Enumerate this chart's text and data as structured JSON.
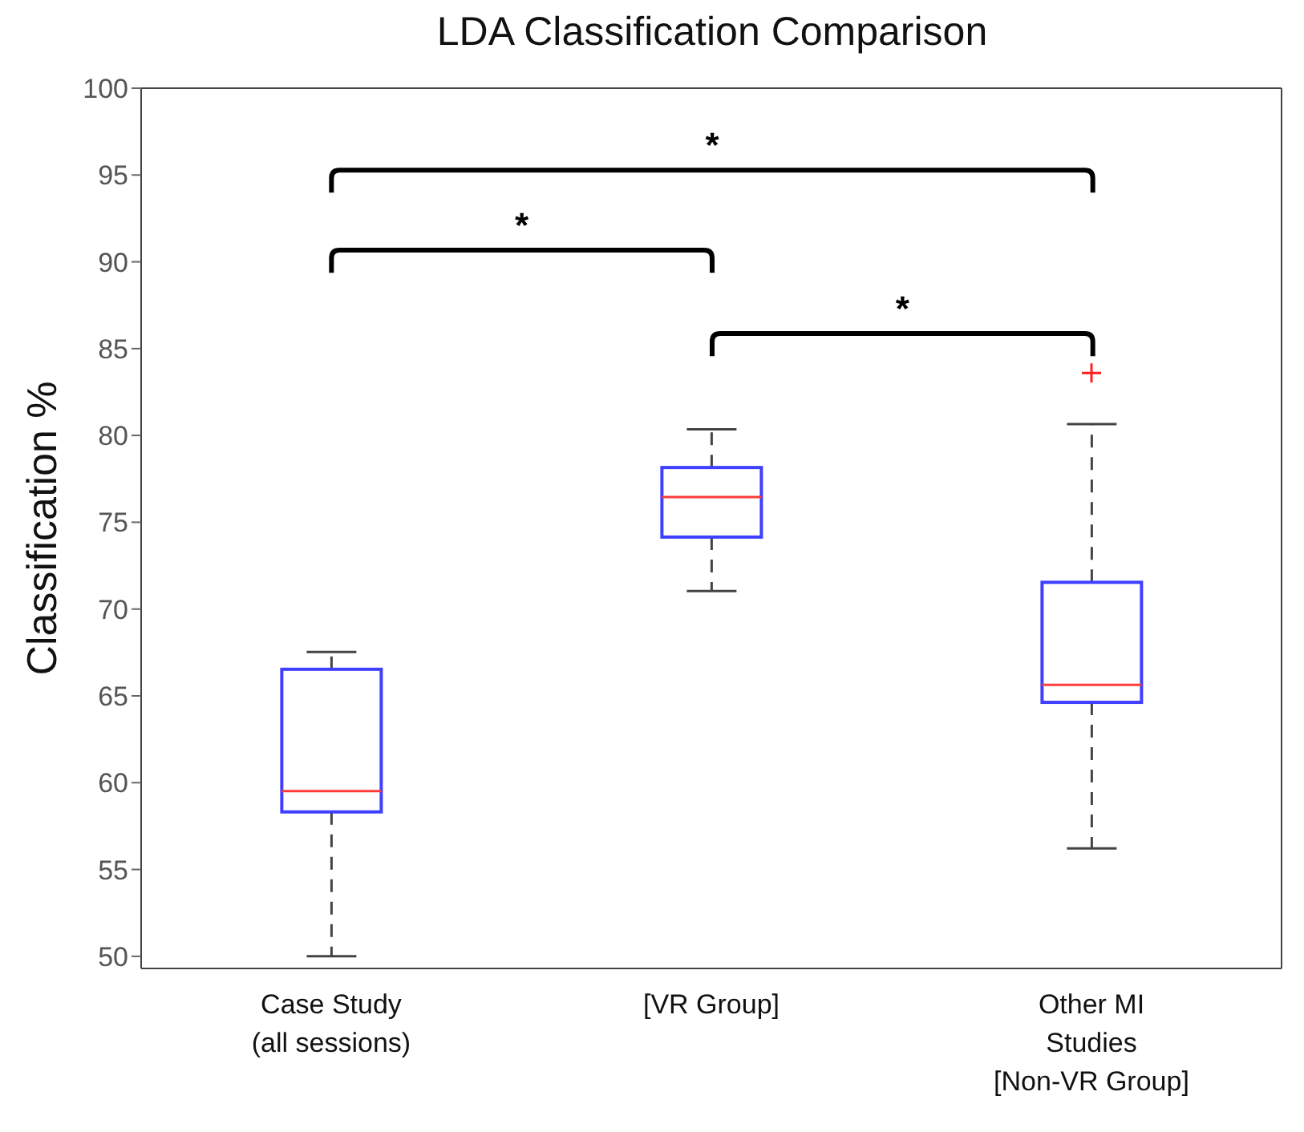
{
  "chart_data": {
    "type": "box",
    "title": "LDA Classification Comparison",
    "ylabel": "Classification %",
    "categories": [
      "Case Study\n(all sessions)",
      "[VR Group]",
      "Other MI\nStudies\n[Non-VR Group]"
    ],
    "color": "#3f3fff",
    "boxes": [
      {
        "low": 50,
        "q1": 58.3,
        "median": 59.5,
        "q3": 66.5,
        "high": 67.5
      },
      {
        "low": 71,
        "q1": 74.1,
        "median": 76.4,
        "q3": 78.1,
        "high": 80.3
      },
      {
        "low": 56.2,
        "q1": 64.6,
        "median": 65.6,
        "q3": 71.5,
        "high": 80.6,
        "outliers": [
          83.6
        ]
      }
    ],
    "ylim": [
      49.3,
      100
    ],
    "yticks": [
      50,
      55,
      60,
      65,
      70,
      75,
      80,
      85,
      90,
      95,
      100
    ],
    "annotations": [
      "*",
      "*",
      "*"
    ]
  }
}
